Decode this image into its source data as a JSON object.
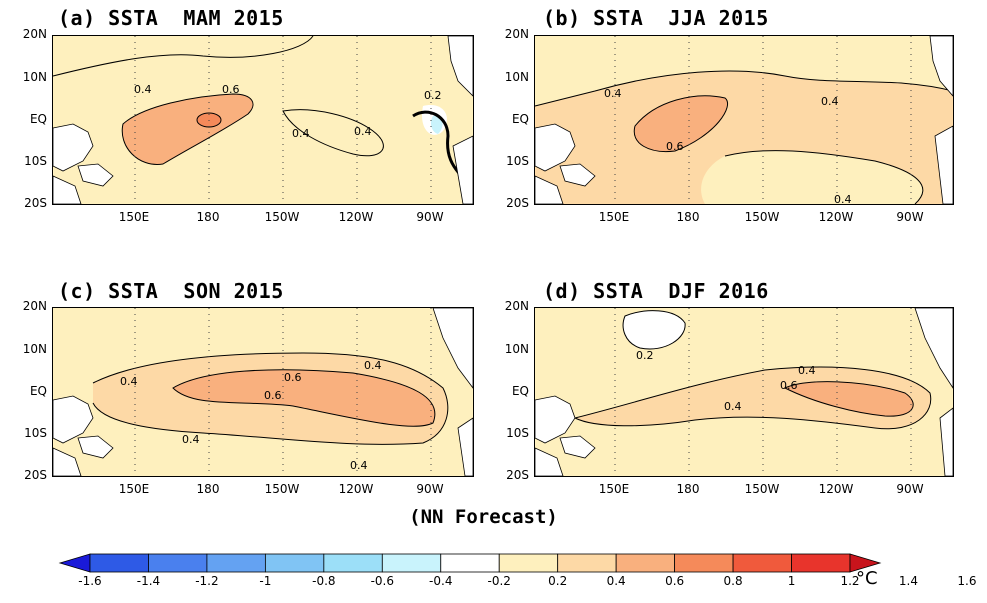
{
  "panels": [
    {
      "title": "(a) SSTA  MAM 2015",
      "labels": [
        "0.4",
        "0.6",
        "0.4",
        "0.4",
        "0.2"
      ]
    },
    {
      "title": "(b) SSTA  JJA 2015",
      "labels": [
        "0.4",
        "0.6",
        "0.4",
        "0.4"
      ]
    },
    {
      "title": "(c) SSTA  SON 2015",
      "labels": [
        "0.4",
        "0.6",
        "0.6",
        "0.4",
        "0.4",
        "0.4"
      ]
    },
    {
      "title": "(d) SSTA  DJF 2016",
      "labels": [
        "0.2",
        "0.4",
        "0.6",
        "0.4"
      ]
    }
  ],
  "lat_ticks": [
    "20N",
    "10N",
    "EQ",
    "10S",
    "20S"
  ],
  "lon_ticks": [
    "150E",
    "180",
    "150W",
    "120W",
    "90W"
  ],
  "caption": "(NN Forecast)",
  "colorbar": {
    "ticks": [
      "-1.6",
      "-1.4",
      "-1.2",
      "-1",
      "-0.8",
      "-0.6",
      "-0.4",
      "-0.2",
      "0.2",
      "0.4",
      "0.6",
      "0.8",
      "1",
      "1.2",
      "1.4",
      "1.6"
    ],
    "unit": "°C",
    "colors": [
      "#1a1ad9",
      "#2e5ae6",
      "#4a80ee",
      "#64a2f2",
      "#80c4f4",
      "#9cdff8",
      "#c9f3fc",
      "#ffffff",
      "#fef0be",
      "#fdd9a6",
      "#f9b07e",
      "#f58a5a",
      "#f05a3c",
      "#e8342c",
      "#c8141c"
    ]
  }
}
